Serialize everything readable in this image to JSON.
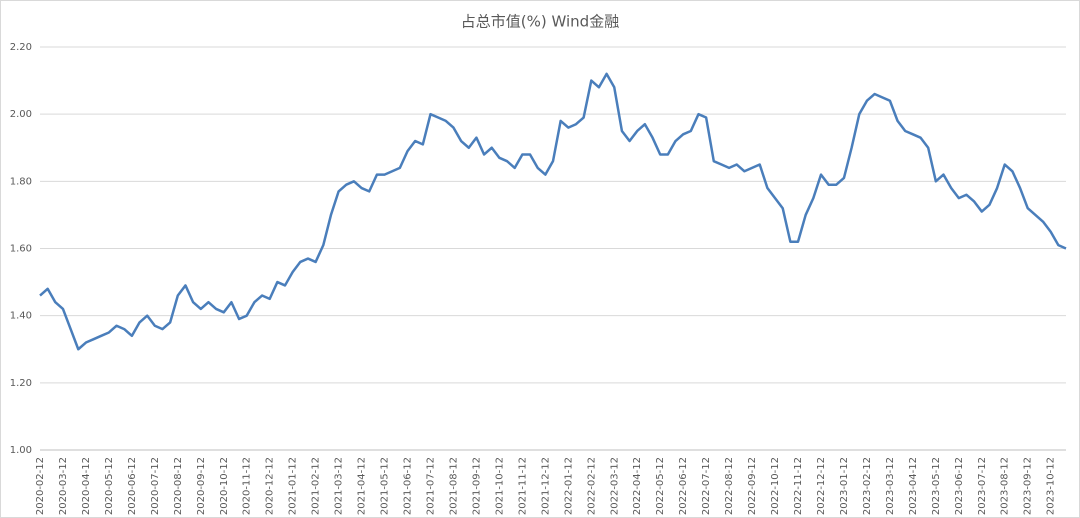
{
  "chart_data": {
    "type": "line",
    "title": "占总市值(%) Wind金融",
    "categories": [
      "2020-02-12",
      null,
      null,
      "2020-03-12",
      null,
      null,
      "2020-04-12",
      null,
      null,
      "2020-05-12",
      null,
      null,
      "2020-06-12",
      null,
      null,
      "2020-07-12",
      null,
      null,
      "2020-08-12",
      null,
      null,
      "2020-09-12",
      null,
      null,
      "2020-10-12",
      null,
      null,
      "2020-11-12",
      null,
      null,
      "2020-12-12",
      null,
      null,
      "2021-01-12",
      null,
      null,
      "2021-02-12",
      null,
      null,
      "2021-03-12",
      null,
      null,
      "2021-04-12",
      null,
      null,
      "2021-05-12",
      null,
      null,
      "2021-06-12",
      null,
      null,
      "2021-07-12",
      null,
      null,
      "2021-08-12",
      null,
      null,
      "2021-09-12",
      null,
      null,
      "2021-10-12",
      null,
      null,
      "2021-11-12",
      null,
      null,
      "2021-12-12",
      null,
      null,
      "2022-01-12",
      null,
      null,
      "2022-02-12",
      null,
      null,
      "2022-03-12",
      null,
      null,
      "2022-04-12",
      null,
      null,
      "2022-05-12",
      null,
      null,
      "2022-06-12",
      null,
      null,
      "2022-07-12",
      null,
      null,
      "2022-08-12",
      null,
      null,
      "2022-09-12",
      null,
      null,
      "2022-10-12",
      null,
      null,
      "2022-11-12",
      null,
      null,
      "2022-12-12",
      null,
      null,
      "2023-01-12",
      null,
      null,
      "2023-02-12",
      null,
      null,
      "2023-03-12",
      null,
      null,
      "2023-04-12",
      null,
      null,
      "2023-05-12",
      null,
      null,
      "2023-06-12",
      null,
      null,
      "2023-07-12",
      null,
      null,
      "2023-08-12",
      null,
      null,
      "2023-09-12",
      null,
      null,
      "2023-10-12",
      null,
      null
    ],
    "series": [
      {
        "name": "Wind金融",
        "color": "#4a7ebb",
        "values": [
          1.46,
          1.48,
          1.44,
          1.42,
          1.36,
          1.3,
          1.32,
          1.33,
          1.34,
          1.35,
          1.37,
          1.36,
          1.34,
          1.38,
          1.4,
          1.37,
          1.36,
          1.38,
          1.46,
          1.49,
          1.44,
          1.42,
          1.44,
          1.42,
          1.41,
          1.44,
          1.39,
          1.4,
          1.44,
          1.46,
          1.45,
          1.5,
          1.49,
          1.53,
          1.56,
          1.57,
          1.56,
          1.61,
          1.7,
          1.77,
          1.79,
          1.8,
          1.78,
          1.77,
          1.82,
          1.82,
          1.83,
          1.84,
          1.89,
          1.92,
          1.91,
          2.0,
          1.99,
          1.98,
          1.96,
          1.92,
          1.9,
          1.93,
          1.88,
          1.9,
          1.87,
          1.86,
          1.84,
          1.88,
          1.88,
          1.84,
          1.82,
          1.86,
          1.98,
          1.96,
          1.97,
          1.99,
          2.1,
          2.08,
          2.12,
          2.08,
          1.95,
          1.92,
          1.95,
          1.97,
          1.93,
          1.88,
          1.88,
          1.92,
          1.94,
          1.95,
          2.0,
          1.99,
          1.86,
          1.85,
          1.84,
          1.85,
          1.83,
          1.84,
          1.85,
          1.78,
          1.75,
          1.72,
          1.62,
          1.62,
          1.7,
          1.75,
          1.82,
          1.79,
          1.79,
          1.81,
          1.9,
          2.0,
          2.04,
          2.06,
          2.05,
          2.04,
          1.98,
          1.95,
          1.94,
          1.93,
          1.9,
          1.8,
          1.82,
          1.78,
          1.75,
          1.76,
          1.74,
          1.71,
          1.73,
          1.78,
          1.85,
          1.83,
          1.78,
          1.72,
          1.7,
          1.68,
          1.65,
          1.61,
          1.6
        ]
      }
    ],
    "ylim": [
      1.0,
      2.2
    ],
    "yticks": [
      {
        "value": 1.0,
        "label": "1.00"
      },
      {
        "value": 1.2,
        "label": "1.20"
      },
      {
        "value": 1.4,
        "label": "1.40"
      },
      {
        "value": 1.6,
        "label": "1.60"
      },
      {
        "value": 1.8,
        "label": "1.80"
      },
      {
        "value": 2.0,
        "label": "2.00"
      },
      {
        "value": 2.2,
        "label": "2.20"
      }
    ],
    "grid": true
  }
}
